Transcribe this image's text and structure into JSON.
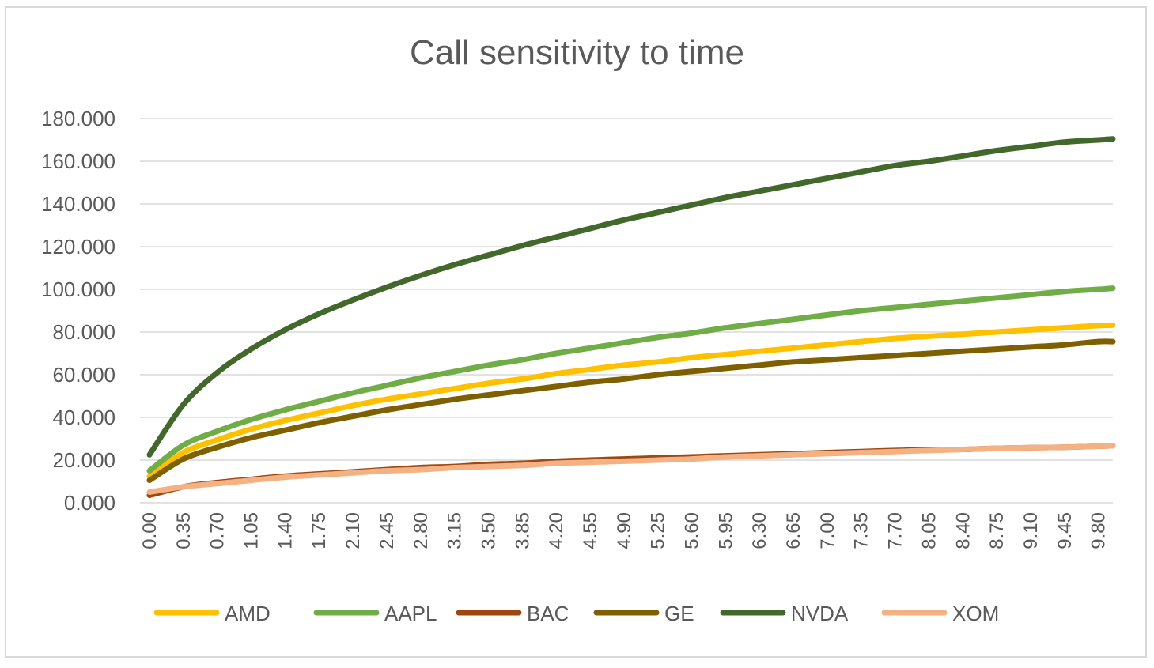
{
  "chart_data": {
    "type": "line",
    "title": "Call sensitivity to time",
    "xlabel": "",
    "ylabel": "",
    "ylim": [
      0,
      180
    ],
    "y_ticks": [
      "0.000",
      "20.000",
      "40.000",
      "60.000",
      "80.000",
      "100.000",
      "120.000",
      "140.000",
      "160.000",
      "180.000"
    ],
    "x_ticks": [
      "0.00",
      "0.35",
      "0.70",
      "1.05",
      "1.40",
      "1.75",
      "2.10",
      "2.45",
      "2.80",
      "3.15",
      "3.50",
      "3.85",
      "4.20",
      "4.55",
      "4.90",
      "5.25",
      "5.60",
      "5.95",
      "6.30",
      "6.65",
      "7.00",
      "7.35",
      "7.70",
      "8.05",
      "8.40",
      "8.75",
      "9.10",
      "9.45",
      "9.80"
    ],
    "xlim": [
      0,
      9.95
    ],
    "grid": true,
    "legend_position": "bottom",
    "x": [
      0.0,
      0.35,
      0.7,
      1.05,
      1.4,
      1.75,
      2.1,
      2.45,
      2.8,
      3.15,
      3.5,
      3.85,
      4.2,
      4.55,
      4.9,
      5.25,
      5.6,
      5.95,
      6.3,
      6.65,
      7.0,
      7.35,
      7.7,
      8.05,
      8.4,
      8.75,
      9.1,
      9.45,
      9.8,
      9.95
    ],
    "series": [
      {
        "name": "AMD",
        "color": "#ffc000",
        "values": [
          12.5,
          23.5,
          29.5,
          34.5,
          38.5,
          42.0,
          45.5,
          48.5,
          51.0,
          53.5,
          56.0,
          58.0,
          60.5,
          62.5,
          64.5,
          66.0,
          68.0,
          69.5,
          71.0,
          72.5,
          74.0,
          75.5,
          77.0,
          78.0,
          79.0,
          80.0,
          81.0,
          82.0,
          83.0,
          83.2
        ]
      },
      {
        "name": "AAPL",
        "color": "#70ad47",
        "values": [
          15.0,
          27.0,
          33.5,
          39.0,
          43.5,
          47.5,
          51.5,
          55.0,
          58.5,
          61.5,
          64.5,
          67.0,
          70.0,
          72.5,
          75.0,
          77.5,
          79.5,
          82.0,
          84.0,
          86.0,
          88.0,
          90.0,
          91.5,
          93.0,
          94.5,
          96.0,
          97.5,
          99.0,
          100.0,
          100.5
        ]
      },
      {
        "name": "BAC",
        "color": "#9e480e",
        "values": [
          3.5,
          7.5,
          9.5,
          11.0,
          12.5,
          13.5,
          14.5,
          15.5,
          16.5,
          17.0,
          18.0,
          18.5,
          19.5,
          20.0,
          20.5,
          21.0,
          21.5,
          22.0,
          22.5,
          23.0,
          23.5,
          24.0,
          24.5,
          24.8,
          25.0,
          25.5,
          25.8,
          26.0,
          26.5,
          26.7
        ]
      },
      {
        "name": "GE",
        "color": "#7f6000",
        "values": [
          10.5,
          20.5,
          26.0,
          30.5,
          34.0,
          37.5,
          40.5,
          43.5,
          46.0,
          48.5,
          50.5,
          52.5,
          54.5,
          56.5,
          58.0,
          60.0,
          61.5,
          63.0,
          64.5,
          66.0,
          67.0,
          68.0,
          69.0,
          70.0,
          71.0,
          72.0,
          73.0,
          74.0,
          75.5,
          75.5
        ]
      },
      {
        "name": "NVDA",
        "color": "#43682b",
        "values": [
          22.5,
          46.0,
          61.0,
          72.0,
          81.0,
          88.5,
          95.0,
          101.0,
          106.5,
          111.5,
          116.0,
          120.5,
          124.5,
          128.5,
          132.5,
          136.0,
          139.5,
          143.0,
          146.0,
          149.0,
          152.0,
          155.0,
          158.0,
          160.0,
          162.5,
          165.0,
          167.0,
          169.0,
          170.0,
          170.5
        ]
      },
      {
        "name": "XOM",
        "color": "#f4b183",
        "values": [
          5.0,
          7.5,
          9.0,
          10.5,
          12.0,
          13.0,
          14.0,
          15.0,
          15.5,
          16.5,
          17.0,
          17.5,
          18.5,
          19.0,
          19.5,
          20.0,
          20.5,
          21.5,
          22.0,
          22.5,
          23.0,
          23.5,
          24.0,
          24.5,
          25.0,
          25.5,
          25.8,
          26.0,
          26.5,
          26.7
        ]
      }
    ]
  }
}
